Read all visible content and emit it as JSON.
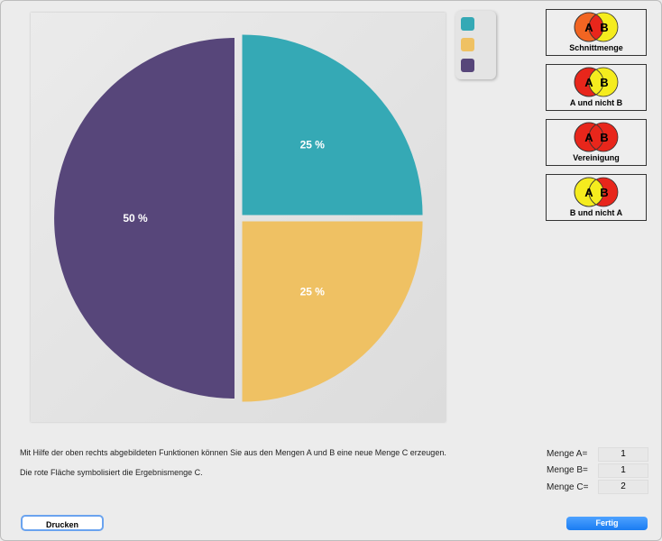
{
  "chart_data": {
    "type": "pie",
    "slices": [
      {
        "label": "25 %",
        "value": 25,
        "color": "#35a9b5"
      },
      {
        "label": "25 %",
        "value": 25,
        "color": "#efc163"
      },
      {
        "label": "50 %",
        "value": 50,
        "color": "#57467a"
      }
    ]
  },
  "functions": [
    {
      "label": "Schnittmenge",
      "a": "#f26522",
      "b": "#f5ec1e",
      "ab": "#e8261b"
    },
    {
      "label": "A und nicht B",
      "a": "#e8261b",
      "b": "#f5ec1e",
      "ab": "#f5ec1e"
    },
    {
      "label": "Vereinigung",
      "a": "#e8261b",
      "b": "#e8261b",
      "ab": "#e8261b"
    },
    {
      "label": "B und nicht A",
      "a": "#f5ec1e",
      "b": "#e8261b",
      "ab": "#f5ec1e"
    }
  ],
  "venn": {
    "a": "A",
    "b": "B"
  },
  "info": {
    "line1": "Mit Hilfe der oben rechts abgebildeten Funktionen können Sie aus den Mengen A und B eine neue Menge C erzeugen.",
    "line2": "Die rote Fläche symbolisiert die Ergebnismenge C."
  },
  "sets": [
    {
      "label": "Menge A=",
      "value": "1"
    },
    {
      "label": "Menge B=",
      "value": "1"
    },
    {
      "label": "Menge C=",
      "value": "2"
    }
  ],
  "buttons": {
    "print": "Drucken",
    "done": "Fertig"
  }
}
